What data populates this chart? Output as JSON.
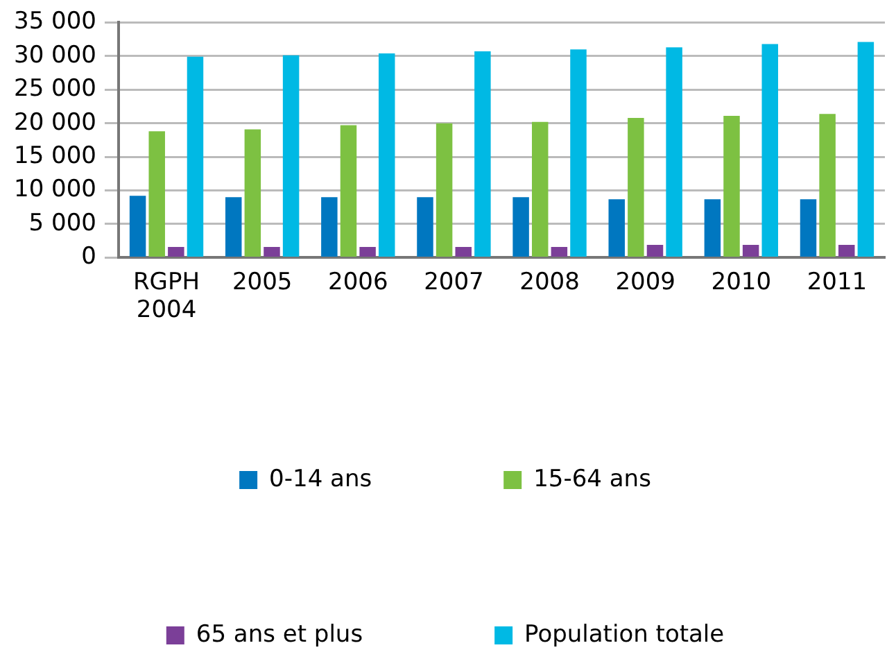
{
  "chart_data": {
    "type": "bar",
    "categories": [
      "RGPH 2004",
      "2005",
      "2006",
      "2007",
      "2008",
      "2009",
      "2010",
      "2011"
    ],
    "series": [
      {
        "name": "0-14 ans",
        "color": "#0077c0",
        "values": [
          9200,
          9000,
          9000,
          9000,
          9000,
          8700,
          8700,
          8700
        ]
      },
      {
        "name": "15-64 ans",
        "color": "#7dc142",
        "values": [
          18800,
          19100,
          19700,
          20000,
          20200,
          20800,
          21100,
          21400
        ]
      },
      {
        "name": "65 ans et plus",
        "color": "#7b3f98",
        "values": [
          1600,
          1600,
          1600,
          1600,
          1600,
          1900,
          1900,
          1900
        ]
      },
      {
        "name": "Population totale",
        "color": "#00b9e4",
        "values": [
          29900,
          30100,
          30400,
          30700,
          31000,
          31300,
          31800,
          32100
        ]
      }
    ],
    "ylim": [
      0,
      35000
    ],
    "yticks": [
      {
        "value": 0,
        "label": "0"
      },
      {
        "value": 5000,
        "label": "5 000"
      },
      {
        "value": 10000,
        "label": "10 000"
      },
      {
        "value": 15000,
        "label": "15 000"
      },
      {
        "value": 20000,
        "label": "20 000"
      },
      {
        "value": 25000,
        "label": "25 000"
      },
      {
        "value": 30000,
        "label": "30 000"
      },
      {
        "value": 35000,
        "label": "35 000"
      }
    ],
    "grid": "y",
    "legend": "bottom"
  }
}
